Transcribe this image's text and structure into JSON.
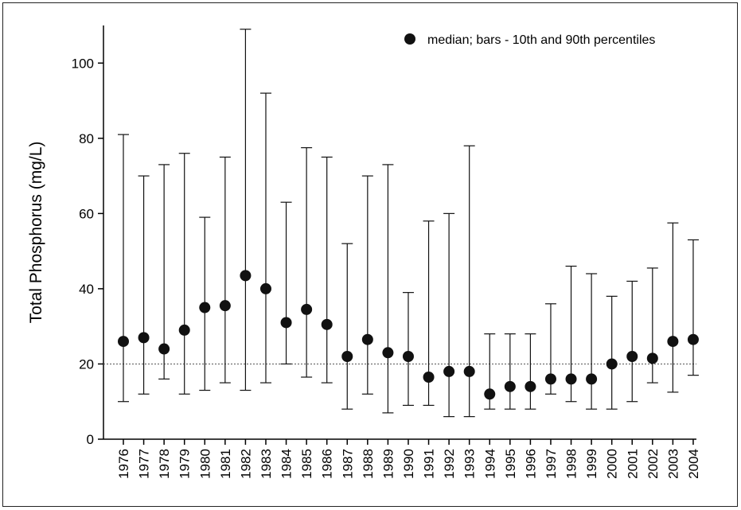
{
  "chart_data": {
    "type": "scatter",
    "ylabel": "Total Phosphorus (mg/L)",
    "xlabel": "",
    "ylim": [
      0,
      110
    ],
    "yticks": [
      0,
      20,
      40,
      60,
      80,
      100
    ],
    "reference_line": {
      "y": 20,
      "style": "dotted"
    },
    "legend": {
      "label": "median; bars - 10th and 90th percentiles",
      "position": "top-right"
    },
    "categories": [
      "1976",
      "1977",
      "1978",
      "1979",
      "1980",
      "1981",
      "1982",
      "1983",
      "1984",
      "1985",
      "1986",
      "1987",
      "1988",
      "1989",
      "1990",
      "1991",
      "1992",
      "1993",
      "1994",
      "1995",
      "1996",
      "1997",
      "1998",
      "1999",
      "2000",
      "2001",
      "2002",
      "2003",
      "2004"
    ],
    "series": [
      {
        "stat": "median",
        "values": [
          26,
          27,
          24,
          29,
          35,
          35.5,
          43.5,
          40,
          31,
          34.5,
          30.5,
          22,
          26.5,
          23,
          22,
          16.5,
          18,
          18,
          12,
          14,
          14,
          16,
          16,
          16,
          20,
          22,
          21.5,
          26,
          26.5
        ]
      },
      {
        "stat": "p10",
        "values": [
          10,
          12,
          16,
          12,
          13,
          15,
          13,
          15,
          20,
          16.5,
          15,
          8,
          12,
          7,
          9,
          9,
          6,
          6,
          8,
          8,
          8,
          12,
          10,
          8,
          8,
          10,
          15,
          12.5,
          17
        ]
      },
      {
        "stat": "p90",
        "values": [
          81,
          70,
          73,
          76,
          59,
          75,
          109,
          92,
          63,
          77.5,
          75,
          52,
          70,
          73,
          39,
          58,
          60,
          78,
          28,
          28,
          28,
          36,
          46,
          44,
          38,
          42,
          45.5,
          57.5,
          53
        ]
      }
    ],
    "colors": {
      "marker": "#111111",
      "line": "#111111",
      "reference": "#555555"
    },
    "grid": false
  }
}
